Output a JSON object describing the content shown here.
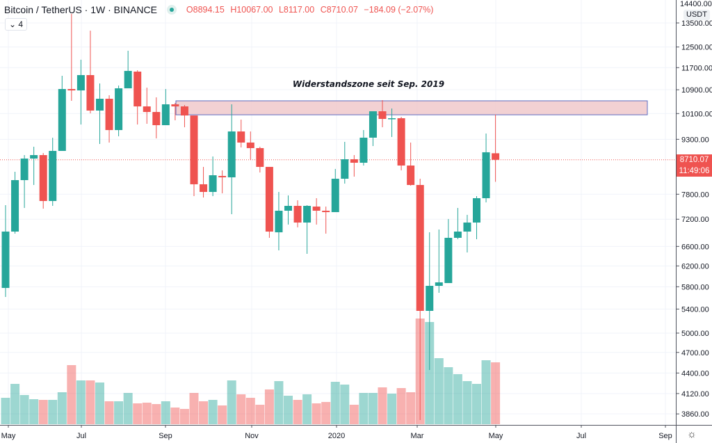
{
  "header": {
    "symbol_title": "Bitcoin / TetherUS · 1W · BINANCE",
    "ohlc": {
      "open": "O8894.15",
      "high": "H10067.00",
      "low": "L8117.00",
      "close": "C8710.07",
      "change": "−184.09 (−2.07%)"
    },
    "collapse_label": "4",
    "status_icon": "market-status-dot-icon"
  },
  "price_axis": {
    "currency": "USDT",
    "top_partial_tick": "14400.00",
    "last_price": "8710.07",
    "countdown": "11:49:06",
    "settings_icon": "settings-gear-icon"
  },
  "colors": {
    "up": "#26a69a",
    "down": "#ef5350",
    "zone_fill": "#f0c9cb",
    "zone_border": "#5c6bc0"
  },
  "chart_data": {
    "type": "candlestick",
    "title": "",
    "y_scale": "log",
    "ylim": [
      3700,
      14400
    ],
    "grid": true,
    "y_ticks": [
      13500,
      12500,
      11700,
      10900,
      10100,
      9300,
      8710.07,
      7800,
      7200,
      6600,
      6200,
      5800,
      5400,
      5000,
      4700,
      4400,
      4120,
      3860
    ],
    "y_tick_labels": [
      "13500.00",
      "12500.00",
      "11700.00",
      "10900.00",
      "10100.00",
      "9300.00",
      "8710.07",
      "7800.00",
      "7200.00",
      "6600.00",
      "6200.00",
      "5800.00",
      "5400.00",
      "5000.00",
      "4700.00",
      "4400.00",
      "4120.00",
      "3860.00"
    ],
    "x_tick_labels": [
      "May",
      "Jul",
      "Sep",
      "Nov",
      "2020",
      "Mar",
      "May",
      "Jul",
      "Sep"
    ],
    "annotation": {
      "text": "Widerstandszone seit Sep. 2019",
      "zone_low": 10060,
      "zone_high": 10520
    },
    "candles": [
      [
        5778,
        7532,
        5613,
        6921
      ],
      [
        6921,
        8382,
        6876,
        8161
      ],
      [
        8161,
        8842,
        7465,
        8744
      ],
      [
        8744,
        9082,
        8035,
        8842
      ],
      [
        8842,
        8900,
        7448,
        7633
      ],
      [
        7633,
        9349,
        7515,
        8961
      ],
      [
        8961,
        11398,
        8961,
        10926
      ],
      [
        10926,
        13900,
        10520,
        10877
      ],
      [
        10877,
        12000,
        9752,
        11424
      ],
      [
        11424,
        13170,
        10106,
        10197
      ],
      [
        10197,
        11121,
        9164,
        10590
      ],
      [
        10590,
        10709,
        9204,
        9580
      ],
      [
        9580,
        11048,
        9391,
        10950
      ],
      [
        10950,
        12350,
        10950,
        11578
      ],
      [
        11552,
        11603,
        9752,
        10334
      ],
      [
        10334,
        10974,
        9774,
        10151
      ],
      [
        10151,
        10638,
        9328,
        9731
      ],
      [
        9731,
        10926,
        9731,
        10403
      ],
      [
        10403,
        10450,
        9884,
        10334
      ],
      [
        10334,
        10380,
        9666,
        10038
      ],
      [
        10038,
        10038,
        7753,
        8053
      ],
      [
        8053,
        8514,
        7719,
        7858
      ],
      [
        7858,
        8803,
        7753,
        8289
      ],
      [
        8271,
        8420,
        7823,
        8234
      ],
      [
        8234,
        10403,
        7318,
        9537
      ],
      [
        9537,
        9906,
        9062,
        9204
      ],
      [
        9204,
        9537,
        8710,
        9042
      ],
      [
        9042,
        9082,
        8363,
        8514
      ],
      [
        8514,
        8514,
        6784,
        6921
      ],
      [
        6905,
        7858,
        6517,
        7399
      ],
      [
        7399,
        7771,
        7078,
        7515
      ],
      [
        7515,
        7650,
        7015,
        7124
      ],
      [
        7124,
        7532,
        6445,
        7515
      ],
      [
        7498,
        7702,
        7078,
        7399
      ],
      [
        7399,
        7498,
        6876,
        7366
      ],
      [
        7366,
        8458,
        7366,
        8197
      ],
      [
        8197,
        9225,
        8070,
        8725
      ],
      [
        8725,
        8842,
        8253,
        8628
      ],
      [
        8628,
        9580,
        8551,
        9349
      ],
      [
        9349,
        10174,
        9102,
        10174
      ],
      [
        10174,
        10543,
        9666,
        9928
      ],
      [
        9928,
        10265,
        9370,
        9950
      ],
      [
        9950,
        9994,
        8420,
        8551
      ],
      [
        8551,
        9204,
        8017,
        8035
      ],
      [
        8035,
        8197,
        3785,
        5369
      ],
      [
        5369,
        6905,
        4443,
        5817
      ],
      [
        5817,
        6967,
        5689,
        5882
      ],
      [
        5869,
        7205,
        5869,
        6784
      ],
      [
        6784,
        7465,
        6754,
        6921
      ],
      [
        6921,
        7302,
        6473,
        7124
      ],
      [
        7124,
        7753,
        6754,
        7702
      ],
      [
        7702,
        9474,
        7599,
        8922
      ],
      [
        8894.15,
        10067,
        8117,
        8710.07
      ]
    ],
    "candle_fields": [
      "open",
      "high",
      "low",
      "close"
    ],
    "volume_relative": [
      38,
      58,
      42,
      36,
      35,
      35,
      46,
      85,
      63,
      63,
      60,
      33,
      33,
      45,
      30,
      31,
      29,
      33,
      24,
      22,
      45,
      33,
      35,
      27,
      63,
      43,
      38,
      28,
      50,
      62,
      41,
      35,
      43,
      30,
      32,
      61,
      57,
      28,
      45,
      45,
      53,
      44,
      52,
      46,
      152,
      147,
      95,
      82,
      72,
      62,
      58,
      92,
      89
    ]
  }
}
